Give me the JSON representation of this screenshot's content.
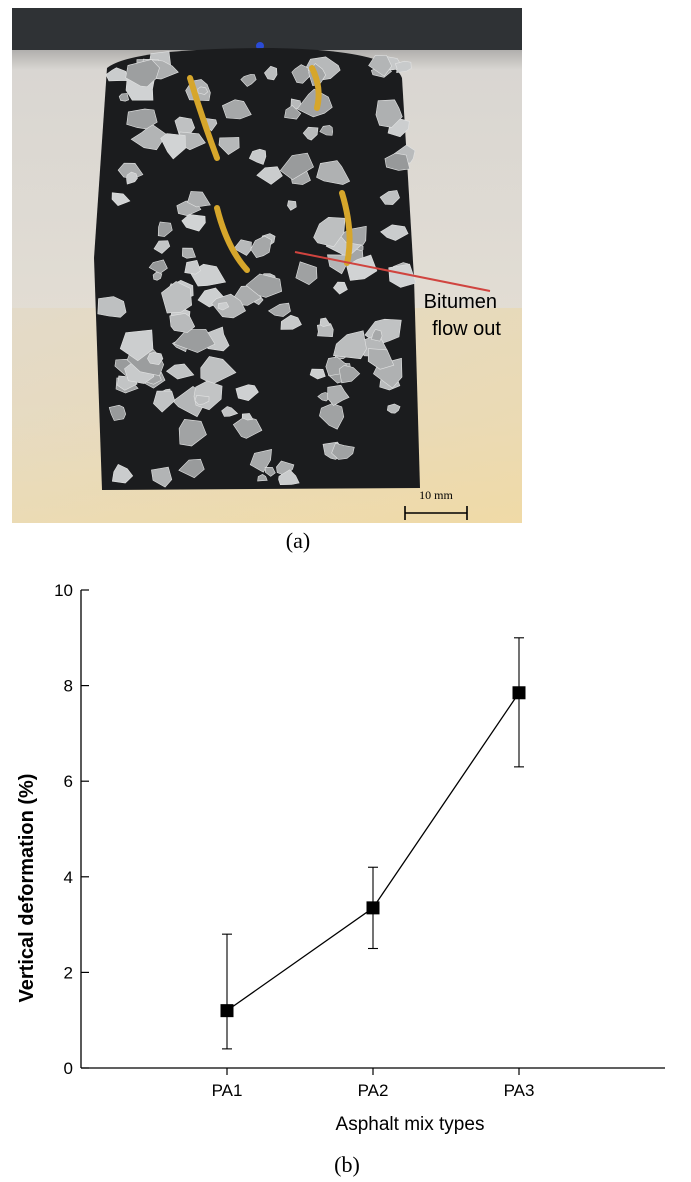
{
  "figure": {
    "caption_a": "(a)",
    "caption_b": "(b)"
  },
  "photo": {
    "annotation_line1": "Bitumen",
    "annotation_line2": "flow out",
    "scale_bar_label": "10 mm",
    "annotation_color": "#d0443f"
  },
  "chart_data": {
    "type": "line",
    "categories": [
      "PA1",
      "PA2",
      "PA3"
    ],
    "series": [
      {
        "values": [
          1.2,
          3.35,
          7.85
        ],
        "error_low": [
          0.4,
          2.5,
          6.3
        ],
        "error_high": [
          2.8,
          4.2,
          9.0
        ]
      }
    ],
    "xlabel": "Asphalt mix types",
    "ylabel": "Vertical deformation (%)",
    "ylim": [
      0,
      10
    ],
    "yticks": [
      0,
      2,
      4,
      6,
      8,
      10
    ],
    "grid": false,
    "marker": "square",
    "line_color": "#000000"
  }
}
